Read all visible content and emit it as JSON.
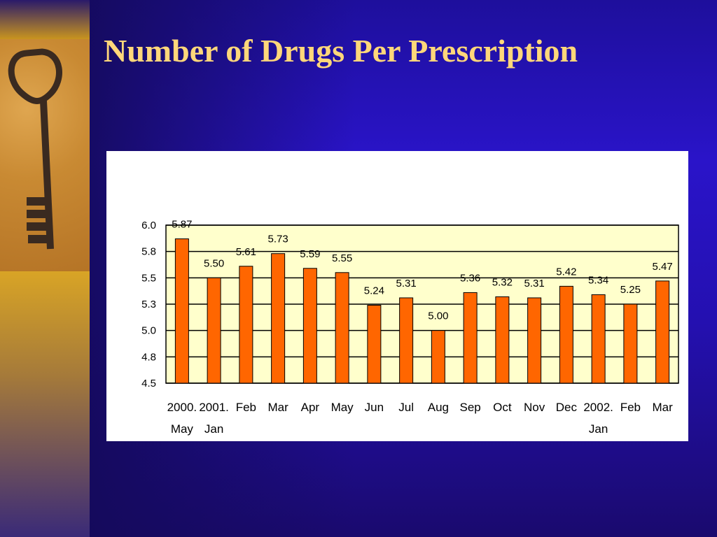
{
  "slide": {
    "title": "Number of Drugs Per Prescription"
  },
  "colors": {
    "bar": "#ff6600",
    "plot_bg": "#ffffcc",
    "title": "#ffd77a"
  },
  "icons": {
    "key_image": "antique-key-image"
  },
  "chart_data": {
    "type": "bar",
    "title": "",
    "xlabel": "",
    "ylabel": "",
    "ylim": [
      4.5,
      6.0
    ],
    "yticks": [
      "6.0",
      "5.8",
      "5.5",
      "5.3",
      "5.0",
      "4.8",
      "4.5"
    ],
    "ytick_values": [
      6.0,
      5.75,
      5.5,
      5.25,
      5.0,
      4.75,
      4.5
    ],
    "grid": true,
    "categories": [
      [
        "2000.",
        "May"
      ],
      [
        "2001.",
        "Jan"
      ],
      [
        "Feb"
      ],
      [
        "Mar"
      ],
      [
        "Apr"
      ],
      [
        "May"
      ],
      [
        "Jun"
      ],
      [
        "Jul"
      ],
      [
        "Aug"
      ],
      [
        "Sep"
      ],
      [
        "Oct"
      ],
      [
        "Nov"
      ],
      [
        "Dec"
      ],
      [
        "2002.",
        "Jan"
      ],
      [
        "Feb"
      ],
      [
        "Mar"
      ]
    ],
    "values": [
      5.87,
      5.5,
      5.61,
      5.73,
      5.59,
      5.55,
      5.24,
      5.31,
      5.0,
      5.36,
      5.32,
      5.31,
      5.42,
      5.34,
      5.25,
      5.47
    ],
    "labels": [
      "5.87",
      "5.50",
      "5.61",
      "5.73",
      "5.59",
      "5.55",
      "5.24",
      "5.31",
      "5.00",
      "5.36",
      "5.32",
      "5.31",
      "5.42",
      "5.34",
      "5.25",
      "5.47"
    ]
  }
}
